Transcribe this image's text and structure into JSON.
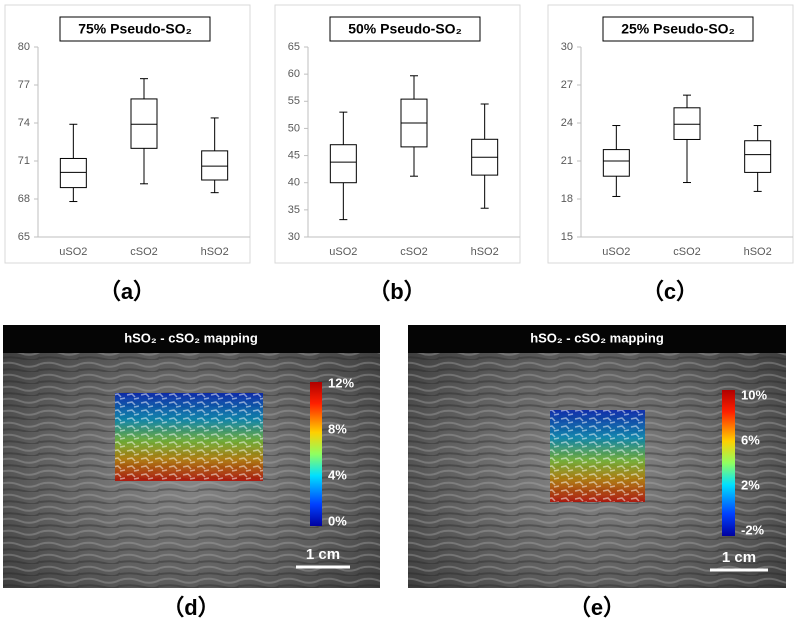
{
  "chart_data": [
    {
      "type": "box",
      "title": "75% Pseudo-SO₂",
      "panel_label": "（a）",
      "categories": [
        "uSO2",
        "cSO2",
        "hSO2"
      ],
      "values": [
        [
          67.8,
          68.9,
          70.1,
          71.2,
          73.9
        ],
        [
          69.2,
          72.0,
          73.9,
          75.9,
          77.5
        ],
        [
          68.5,
          69.5,
          70.6,
          71.8,
          74.4
        ]
      ],
      "color": "#000000",
      "ylim": [
        65,
        80
      ],
      "yticks": [
        65,
        68,
        71,
        74,
        77,
        80
      ]
    },
    {
      "type": "box",
      "title": "50% Pseudo-SO₂",
      "panel_label": "（b）",
      "categories": [
        "uSO2",
        "cSO2",
        "hSO2"
      ],
      "values": [
        [
          33.2,
          40.0,
          43.8,
          47.0,
          53.0
        ],
        [
          41.2,
          46.6,
          51.0,
          55.4,
          59.7
        ],
        [
          35.3,
          41.4,
          44.7,
          48.0,
          54.5
        ]
      ],
      "color": "#000000",
      "ylim": [
        30,
        65
      ],
      "yticks": [
        30,
        35,
        40,
        45,
        50,
        55,
        60,
        65
      ]
    },
    {
      "type": "box",
      "title": "25% Pseudo-SO₂",
      "panel_label": "（c）",
      "categories": [
        "uSO2",
        "cSO2",
        "hSO2"
      ],
      "values": [
        [
          18.2,
          19.8,
          21.0,
          21.9,
          23.8
        ],
        [
          19.3,
          22.7,
          23.9,
          25.2,
          26.2
        ],
        [
          18.6,
          20.1,
          21.5,
          22.6,
          23.8
        ]
      ],
      "color": "#000000",
      "ylim": [
        15,
        30
      ],
      "yticks": [
        15,
        18,
        21,
        24,
        27,
        30
      ]
    }
  ],
  "images": [
    {
      "title": "hSO₂ - cSO₂ mapping",
      "colorbar_ticks": [
        "12%",
        "8%",
        "4%",
        "0%"
      ],
      "scale_bar": "1 cm",
      "panel_label": "（d）"
    },
    {
      "title": "hSO₂ - cSO₂ mapping",
      "colorbar_ticks": [
        "10%",
        "6%",
        "2%",
        "-2%"
      ],
      "scale_bar": "1 cm",
      "panel_label": "（e）"
    }
  ]
}
